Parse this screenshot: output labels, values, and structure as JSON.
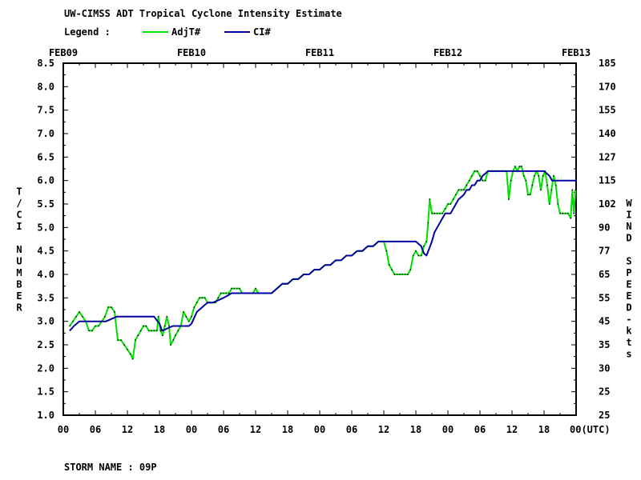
{
  "header": {
    "title": "UW-CIMSS ADT Tropical Cyclone Intensity Estimate",
    "legend_label": "Legend :"
  },
  "footer": {
    "storm_label": "STORM NAME : 09P"
  },
  "colors": {
    "adjt": "#00e000",
    "ci": "#0000a0",
    "axis": "#000000",
    "background": "#ffffff"
  },
  "chart_data": {
    "type": "line",
    "title": "UW-CIMSS ADT Tropical Cyclone Intensity Estimate",
    "x_unit": "hours since FEB09 00 UTC",
    "xlim": [
      0,
      96
    ],
    "date_labels": [
      {
        "label": "FEB09",
        "x": 0
      },
      {
        "label": "FEB10",
        "x": 24
      },
      {
        "label": "FEB11",
        "x": 48
      },
      {
        "label": "FEB12",
        "x": 72
      },
      {
        "label": "FEB13",
        "x": 96
      }
    ],
    "x_ticks": [
      {
        "label": "00",
        "x": 0
      },
      {
        "label": "06",
        "x": 6
      },
      {
        "label": "12",
        "x": 12
      },
      {
        "label": "18",
        "x": 18
      },
      {
        "label": "00",
        "x": 24
      },
      {
        "label": "06",
        "x": 30
      },
      {
        "label": "12",
        "x": 36
      },
      {
        "label": "18",
        "x": 42
      },
      {
        "label": "00",
        "x": 48
      },
      {
        "label": "06",
        "x": 54
      },
      {
        "label": "12",
        "x": 60
      },
      {
        "label": "18",
        "x": 66
      },
      {
        "label": "00",
        "x": 72
      },
      {
        "label": "06",
        "x": 78
      },
      {
        "label": "12",
        "x": 84
      },
      {
        "label": "18",
        "x": 90
      },
      {
        "label": "00(UTC)",
        "x": 96
      }
    ],
    "y_left": {
      "label": "T/CI NUMBER",
      "ylim": [
        1.0,
        8.5
      ],
      "ticks": [
        "1.0",
        "1.5",
        "2.0",
        "2.5",
        "3.0",
        "3.5",
        "4.0",
        "4.5",
        "5.0",
        "5.5",
        "6.0",
        "6.5",
        "7.0",
        "7.5",
        "8.0",
        "8.5"
      ]
    },
    "y_right": {
      "label": "WIND SPEED-kts",
      "ticks": [
        {
          "label": "25",
          "t": 1.0
        },
        {
          "label": "25",
          "t": 1.5
        },
        {
          "label": "30",
          "t": 2.0
        },
        {
          "label": "35",
          "t": 2.5
        },
        {
          "label": "45",
          "t": 3.0
        },
        {
          "label": "55",
          "t": 3.5
        },
        {
          "label": "65",
          "t": 4.0
        },
        {
          "label": "77",
          "t": 4.5
        },
        {
          "label": "90",
          "t": 5.0
        },
        {
          "label": "102",
          "t": 5.5
        },
        {
          "label": "115",
          "t": 6.0
        },
        {
          "label": "127",
          "t": 6.5
        },
        {
          "label": "140",
          "t": 7.0
        },
        {
          "label": "155",
          "t": 7.5
        },
        {
          "label": "170",
          "t": 8.0
        },
        {
          "label": "185",
          "t": 8.5
        }
      ]
    },
    "grid": false,
    "legend_position": "top-left",
    "series": [
      {
        "name": "AdjT#",
        "color": "#00e000",
        "points": [
          [
            1.2,
            2.9
          ],
          [
            1.8,
            3.0
          ],
          [
            2.4,
            3.1
          ],
          [
            3.0,
            3.2
          ],
          [
            3.6,
            3.1
          ],
          [
            4.2,
            3.0
          ],
          [
            4.8,
            2.8
          ],
          [
            5.4,
            2.8
          ],
          [
            6.0,
            2.9
          ],
          [
            6.6,
            2.9
          ],
          [
            7.2,
            3.0
          ],
          [
            7.8,
            3.1
          ],
          [
            8.4,
            3.3
          ],
          [
            9.0,
            3.3
          ],
          [
            9.6,
            3.2
          ],
          [
            10.2,
            2.6
          ],
          [
            10.8,
            2.6
          ],
          [
            11.4,
            2.5
          ],
          [
            12.0,
            2.4
          ],
          [
            12.6,
            2.3
          ],
          [
            13.0,
            2.2
          ],
          [
            13.5,
            2.6
          ],
          [
            14.0,
            2.7
          ],
          [
            14.5,
            2.8
          ],
          [
            15.0,
            2.9
          ],
          [
            15.5,
            2.9
          ],
          [
            16.0,
            2.8
          ],
          [
            16.5,
            2.8
          ],
          [
            17.0,
            2.8
          ],
          [
            17.5,
            2.8
          ],
          [
            17.8,
            3.1
          ],
          [
            18.2,
            2.8
          ],
          [
            18.6,
            2.7
          ],
          [
            19.0,
            2.9
          ],
          [
            19.4,
            3.1
          ],
          [
            19.8,
            2.9
          ],
          [
            20.1,
            2.5
          ],
          [
            20.6,
            2.6
          ],
          [
            21.0,
            2.7
          ],
          [
            21.5,
            2.8
          ],
          [
            22.0,
            2.9
          ],
          [
            22.5,
            3.2
          ],
          [
            23.0,
            3.1
          ],
          [
            23.5,
            3.0
          ],
          [
            24.0,
            3.1
          ],
          [
            24.5,
            3.3
          ],
          [
            25.0,
            3.4
          ],
          [
            25.5,
            3.5
          ],
          [
            26.0,
            3.5
          ],
          [
            26.5,
            3.5
          ],
          [
            27.0,
            3.4
          ],
          [
            27.5,
            3.4
          ],
          [
            28.0,
            3.4
          ],
          [
            28.5,
            3.4
          ],
          [
            29.0,
            3.5
          ],
          [
            29.5,
            3.6
          ],
          [
            30.0,
            3.6
          ],
          [
            30.5,
            3.6
          ],
          [
            31.0,
            3.6
          ],
          [
            31.5,
            3.7
          ],
          [
            32.0,
            3.7
          ],
          [
            32.5,
            3.7
          ],
          [
            33.0,
            3.7
          ],
          [
            33.5,
            3.6
          ],
          [
            34.0,
            3.6
          ],
          [
            34.5,
            3.6
          ],
          [
            35.0,
            3.6
          ],
          [
            35.5,
            3.6
          ],
          [
            36.0,
            3.7
          ],
          [
            36.5,
            3.6
          ],
          [
            37.0,
            3.6
          ],
          [
            37.5,
            3.6
          ],
          [
            38.0,
            3.6
          ],
          [
            38.5,
            3.6
          ],
          [
            39.0,
            3.6
          ],
          [
            40.0,
            3.7
          ],
          [
            41.0,
            3.8
          ],
          [
            42.0,
            3.8
          ],
          [
            43.0,
            3.9
          ],
          [
            44.0,
            3.9
          ],
          [
            45.0,
            4.0
          ],
          [
            46.0,
            4.0
          ],
          [
            47.0,
            4.1
          ],
          [
            48.0,
            4.1
          ],
          [
            49.0,
            4.2
          ],
          [
            50.0,
            4.2
          ],
          [
            51.0,
            4.3
          ],
          [
            52.0,
            4.3
          ],
          [
            53.0,
            4.4
          ],
          [
            54.0,
            4.4
          ],
          [
            55.0,
            4.5
          ],
          [
            56.0,
            4.5
          ],
          [
            57.0,
            4.6
          ],
          [
            58.0,
            4.6
          ],
          [
            59.0,
            4.7
          ],
          [
            59.5,
            4.7
          ],
          [
            60.0,
            4.7
          ],
          [
            60.5,
            4.5
          ],
          [
            61.0,
            4.2
          ],
          [
            61.5,
            4.1
          ],
          [
            62.0,
            4.0
          ],
          [
            62.5,
            4.0
          ],
          [
            63.0,
            4.0
          ],
          [
            63.5,
            4.0
          ],
          [
            64.0,
            4.0
          ],
          [
            64.5,
            4.0
          ],
          [
            65.0,
            4.1
          ],
          [
            65.5,
            4.4
          ],
          [
            66.0,
            4.5
          ],
          [
            66.5,
            4.4
          ],
          [
            67.0,
            4.4
          ],
          [
            67.5,
            4.6
          ],
          [
            68.0,
            4.7
          ],
          [
            68.3,
            5.1
          ],
          [
            68.6,
            5.6
          ],
          [
            69.0,
            5.3
          ],
          [
            69.5,
            5.3
          ],
          [
            70.0,
            5.3
          ],
          [
            70.5,
            5.3
          ],
          [
            71.0,
            5.3
          ],
          [
            71.5,
            5.4
          ],
          [
            72.0,
            5.5
          ],
          [
            72.5,
            5.5
          ],
          [
            73.0,
            5.6
          ],
          [
            73.5,
            5.7
          ],
          [
            74.0,
            5.8
          ],
          [
            74.5,
            5.8
          ],
          [
            75.0,
            5.8
          ],
          [
            75.5,
            5.9
          ],
          [
            76.0,
            6.0
          ],
          [
            76.5,
            6.1
          ],
          [
            77.0,
            6.2
          ],
          [
            77.5,
            6.2
          ],
          [
            78.0,
            6.1
          ],
          [
            78.5,
            6.0
          ],
          [
            79.0,
            6.0
          ],
          [
            79.5,
            6.2
          ],
          [
            80.0,
            6.2
          ],
          [
            80.5,
            6.2
          ],
          [
            81.0,
            6.2
          ],
          [
            81.5,
            6.2
          ],
          [
            82.0,
            6.2
          ],
          [
            82.5,
            6.2
          ],
          [
            83.0,
            6.2
          ],
          [
            83.4,
            5.6
          ],
          [
            83.8,
            6.0
          ],
          [
            84.2,
            6.2
          ],
          [
            84.6,
            6.3
          ],
          [
            85.0,
            6.2
          ],
          [
            85.4,
            6.3
          ],
          [
            85.8,
            6.3
          ],
          [
            86.2,
            6.1
          ],
          [
            86.6,
            6.0
          ],
          [
            87.0,
            5.7
          ],
          [
            87.4,
            5.7
          ],
          [
            87.8,
            5.9
          ],
          [
            88.2,
            6.1
          ],
          [
            88.6,
            6.2
          ],
          [
            89.0,
            6.1
          ],
          [
            89.4,
            5.8
          ],
          [
            89.8,
            6.1
          ],
          [
            90.2,
            6.2
          ],
          [
            90.6,
            5.9
          ],
          [
            91.0,
            5.5
          ],
          [
            91.4,
            5.8
          ],
          [
            91.8,
            6.1
          ],
          [
            92.2,
            5.9
          ],
          [
            92.6,
            5.5
          ],
          [
            93.0,
            5.3
          ],
          [
            93.5,
            5.3
          ],
          [
            94.0,
            5.3
          ],
          [
            94.5,
            5.3
          ],
          [
            95.0,
            5.2
          ],
          [
            95.3,
            5.8
          ],
          [
            95.6,
            5.3
          ],
          [
            95.9,
            5.8
          ]
        ]
      },
      {
        "name": "CI#",
        "color": "#0000a0",
        "points": [
          [
            1.2,
            2.8
          ],
          [
            2.0,
            2.9
          ],
          [
            3.0,
            3.0
          ],
          [
            5.0,
            3.0
          ],
          [
            7.0,
            3.0
          ],
          [
            8.0,
            3.0
          ],
          [
            9.0,
            3.05
          ],
          [
            10.0,
            3.1
          ],
          [
            12.0,
            3.1
          ],
          [
            15.0,
            3.1
          ],
          [
            17.0,
            3.1
          ],
          [
            18.0,
            2.95
          ],
          [
            18.5,
            2.8
          ],
          [
            19.5,
            2.85
          ],
          [
            20.5,
            2.9
          ],
          [
            22.0,
            2.9
          ],
          [
            23.5,
            2.9
          ],
          [
            24.0,
            2.95
          ],
          [
            25.0,
            3.2
          ],
          [
            26.0,
            3.3
          ],
          [
            27.0,
            3.4
          ],
          [
            28.0,
            3.4
          ],
          [
            29.0,
            3.45
          ],
          [
            30.0,
            3.5
          ],
          [
            30.8,
            3.55
          ],
          [
            31.5,
            3.6
          ],
          [
            33.0,
            3.6
          ],
          [
            35.0,
            3.6
          ],
          [
            37.0,
            3.6
          ],
          [
            39.0,
            3.6
          ],
          [
            40.0,
            3.7
          ],
          [
            41.0,
            3.8
          ],
          [
            42.0,
            3.8
          ],
          [
            43.0,
            3.9
          ],
          [
            44.0,
            3.9
          ],
          [
            45.0,
            4.0
          ],
          [
            46.0,
            4.0
          ],
          [
            47.0,
            4.1
          ],
          [
            48.0,
            4.1
          ],
          [
            49.0,
            4.2
          ],
          [
            50.0,
            4.2
          ],
          [
            51.0,
            4.3
          ],
          [
            52.0,
            4.3
          ],
          [
            53.0,
            4.4
          ],
          [
            54.0,
            4.4
          ],
          [
            55.0,
            4.5
          ],
          [
            56.0,
            4.5
          ],
          [
            57.0,
            4.6
          ],
          [
            58.0,
            4.6
          ],
          [
            59.0,
            4.7
          ],
          [
            61.0,
            4.7
          ],
          [
            63.0,
            4.7
          ],
          [
            65.0,
            4.7
          ],
          [
            66.0,
            4.7
          ],
          [
            67.0,
            4.6
          ],
          [
            67.5,
            4.45
          ],
          [
            68.0,
            4.4
          ],
          [
            68.5,
            4.55
          ],
          [
            69.0,
            4.7
          ],
          [
            69.5,
            4.9
          ],
          [
            70.0,
            5.0
          ],
          [
            70.5,
            5.1
          ],
          [
            71.0,
            5.2
          ],
          [
            71.5,
            5.3
          ],
          [
            72.0,
            5.3
          ],
          [
            72.5,
            5.3
          ],
          [
            73.0,
            5.4
          ],
          [
            73.5,
            5.5
          ],
          [
            74.0,
            5.6
          ],
          [
            74.5,
            5.65
          ],
          [
            75.0,
            5.7
          ],
          [
            75.5,
            5.8
          ],
          [
            76.0,
            5.8
          ],
          [
            76.5,
            5.9
          ],
          [
            77.0,
            5.9
          ],
          [
            77.5,
            6.0
          ],
          [
            78.0,
            6.0
          ],
          [
            78.5,
            6.1
          ],
          [
            79.0,
            6.15
          ],
          [
            79.5,
            6.2
          ],
          [
            81.0,
            6.2
          ],
          [
            83.0,
            6.2
          ],
          [
            85.0,
            6.2
          ],
          [
            87.0,
            6.2
          ],
          [
            89.0,
            6.2
          ],
          [
            90.0,
            6.2
          ],
          [
            91.0,
            6.1
          ],
          [
            91.5,
            6.0
          ],
          [
            93.0,
            6.0
          ],
          [
            96.0,
            6.0
          ]
        ]
      }
    ]
  }
}
